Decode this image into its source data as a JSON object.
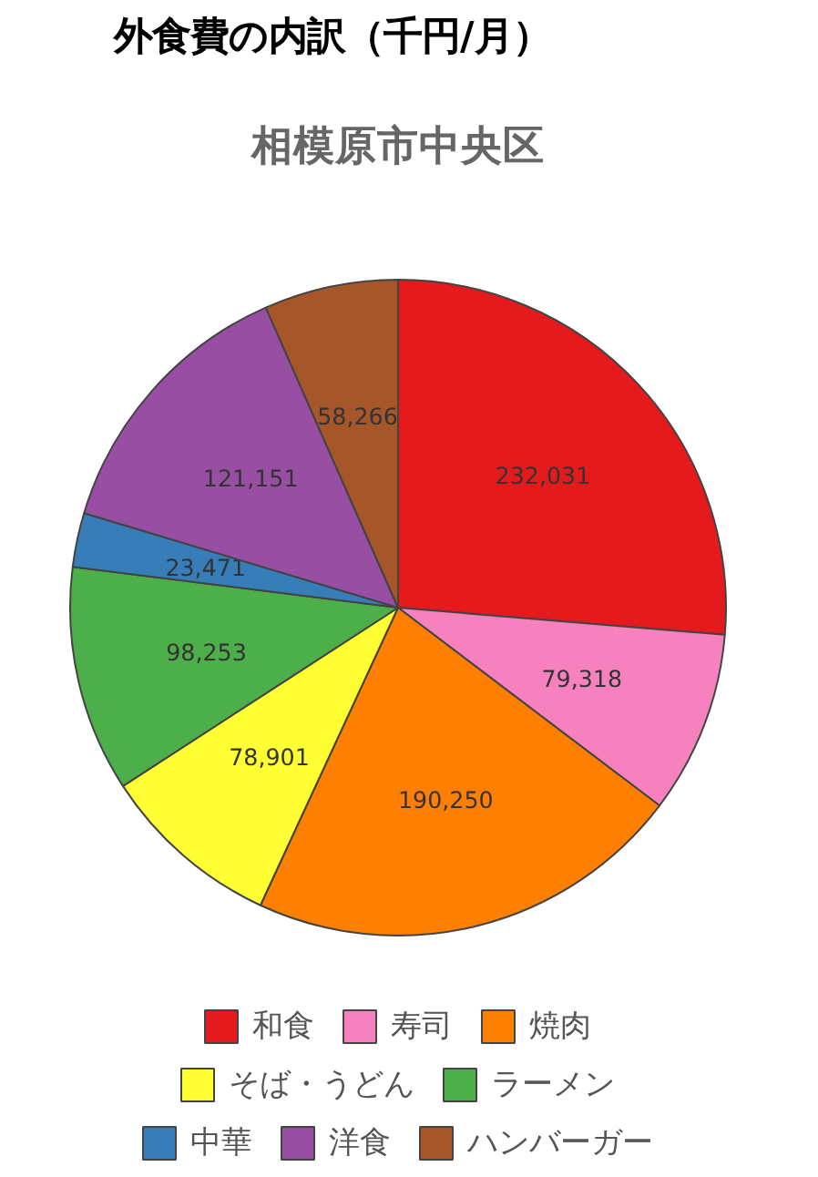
{
  "chart_data": {
    "type": "pie",
    "title": "外食費の内訳（千円/月）",
    "subtitle": "相模原市中央区",
    "categories": [
      "和食",
      "寿司",
      "焼肉",
      "そば・うどん",
      "ラーメン",
      "中華",
      "洋食",
      "ハンバーガー"
    ],
    "values": [
      232031,
      79318,
      190250,
      78901,
      98253,
      23471,
      121151,
      58266
    ],
    "value_labels": [
      "232,031",
      "79,318",
      "190,250",
      "78,901",
      "98,253",
      "23,471",
      "121,151",
      "58,266"
    ],
    "colors": [
      "#e41a1c",
      "#f781bf",
      "#ff7f00",
      "#ffff33",
      "#4daf4a",
      "#377eb8",
      "#984ea3",
      "#a65628"
    ],
    "legend": "bottom"
  }
}
